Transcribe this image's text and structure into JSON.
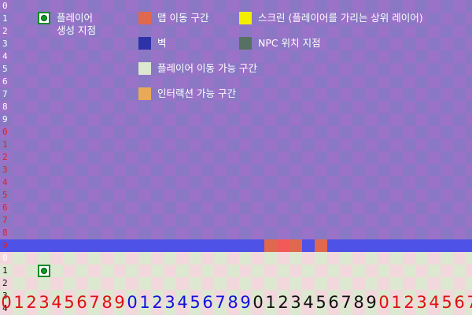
{
  "legend": [
    {
      "id": "player-spawn",
      "label": "플레이어\n생성 지점",
      "color": "#0d9b22",
      "icon": "player-spawn-icon"
    },
    {
      "id": "map-move",
      "label": "맵 이동 구간",
      "color": "#e0684e"
    },
    {
      "id": "screen",
      "label": "스크린 (플레이어를 가리는 상위 레이어)",
      "color": "#f2ee00"
    },
    {
      "id": "wall",
      "label": "벽",
      "color": "#2e32a8"
    },
    {
      "id": "npc",
      "label": "NPC 위치 지점",
      "color": "#567062"
    },
    {
      "id": "walkable",
      "label": "플레이어 이동 가능 구간",
      "color": "#dce8d0"
    },
    {
      "id": "interaction",
      "label": "인터랙션 가능 구간",
      "color": "#e8aa58"
    }
  ],
  "row_labels": [
    "0",
    "1",
    "2",
    "3",
    "4",
    "5",
    "6",
    "7",
    "8",
    "9",
    "0",
    "1",
    "2",
    "3",
    "4",
    "5",
    "6",
    "7",
    "8",
    "9",
    "0",
    "1",
    "2",
    "3",
    "4"
  ],
  "row_label_colors": [
    "#ffffff",
    "#ffffff",
    "#ffffff",
    "#ffffff",
    "#ffffff",
    "#ffffff",
    "#ffffff",
    "#ffffff",
    "#ffffff",
    "#ffffff",
    "#dd2222",
    "#dd2222",
    "#dd2222",
    "#dd2222",
    "#dd2222",
    "#dd2222",
    "#dd2222",
    "#dd2222",
    "#dd2222",
    "#dd2222",
    "#ffffff",
    "#111111",
    "#111111",
    "#111111",
    "#111111"
  ],
  "column_labels": [
    "0",
    "1",
    "2",
    "3",
    "4",
    "5",
    "6",
    "7",
    "8",
    "9",
    "0",
    "1",
    "2",
    "3",
    "4",
    "5",
    "6",
    "7",
    "8",
    "9",
    "0",
    "1",
    "2",
    "3",
    "4",
    "5",
    "6",
    "7",
    "8",
    "9",
    "0",
    "1",
    "2",
    "3",
    "4",
    "5",
    "6",
    "7"
  ],
  "column_label_colors": [
    "#dd1111",
    "#1111dd",
    "#111111",
    "#dd1111"
  ],
  "colors": {
    "bg_checker_a": "#9a72c8",
    "bg_checker_b": "#8a78c4",
    "wall_strip": "#4e52e6",
    "map_move_light": "#e0684e",
    "map_move_bright": "#f25a5a",
    "walkable_a": "#f2d8dc",
    "walkable_b": "#dce8d0"
  },
  "map": {
    "wall_row": 19,
    "map_move_cells": [
      [
        19,
        21
      ],
      [
        19,
        22
      ],
      [
        19,
        23
      ],
      [
        19,
        25
      ]
    ],
    "player_spawn_cell": [
      21,
      3
    ]
  }
}
